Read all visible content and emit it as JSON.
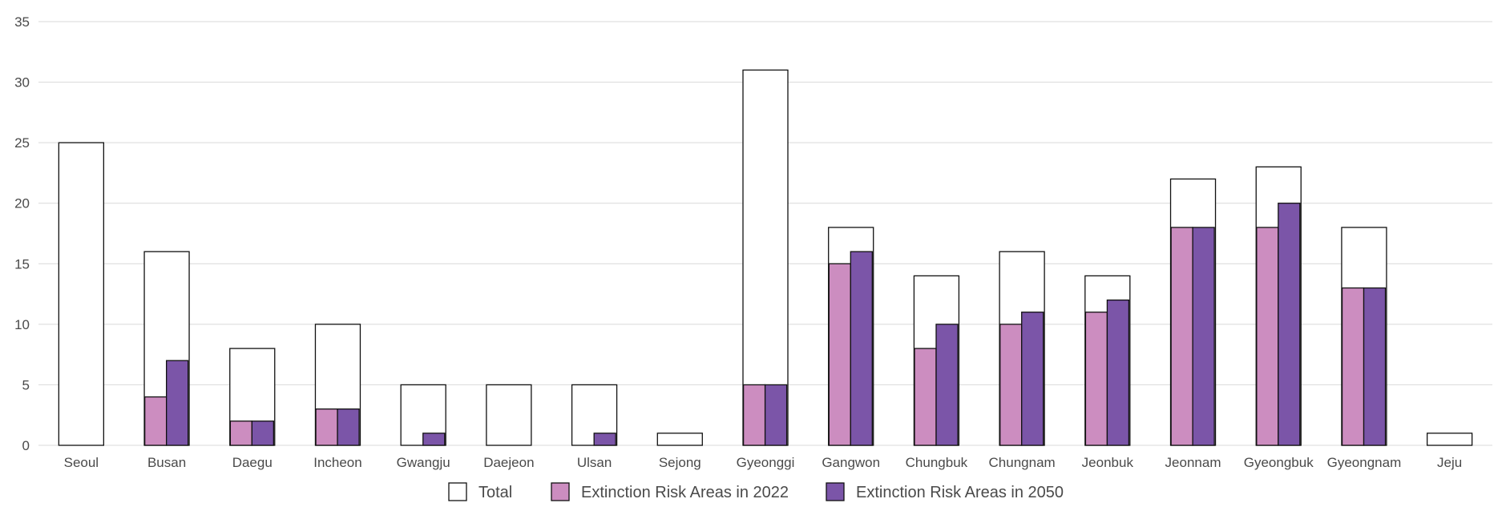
{
  "chart_data": {
    "type": "bar",
    "title": "",
    "xlabel": "",
    "ylabel": "",
    "ylim": [
      0,
      35
    ],
    "yticks": [
      0,
      5,
      10,
      15,
      20,
      25,
      30,
      35
    ],
    "grid": true,
    "legend_position": "bottom",
    "categories": [
      "Seoul",
      "Busan",
      "Daegu",
      "Incheon",
      "Gwangju",
      "Daejeon",
      "Ulsan",
      "Sejong",
      "Gyeonggi",
      "Gangwon",
      "Chungbuk",
      "Chungnam",
      "Jeonbuk",
      "Jeonnam",
      "Gyeongbuk",
      "Gyeongnam",
      "Jeju"
    ],
    "series": [
      {
        "name": "Total",
        "color": "#ffffff",
        "values": [
          25,
          16,
          8,
          10,
          5,
          5,
          5,
          1,
          31,
          18,
          14,
          16,
          14,
          22,
          23,
          18,
          1
        ]
      },
      {
        "name": "Extinction Risk Areas in 2022",
        "color": "#cc8dc0",
        "values": [
          0,
          4,
          2,
          3,
          0,
          0,
          0,
          0,
          5,
          15,
          8,
          10,
          11,
          18,
          18,
          13,
          0
        ]
      },
      {
        "name": "Extinction Risk Areas in 2050",
        "color": "#7b55a8",
        "values": [
          0,
          7,
          2,
          3,
          1,
          0,
          1,
          0,
          5,
          16,
          10,
          11,
          12,
          18,
          20,
          13,
          0
        ]
      }
    ]
  }
}
